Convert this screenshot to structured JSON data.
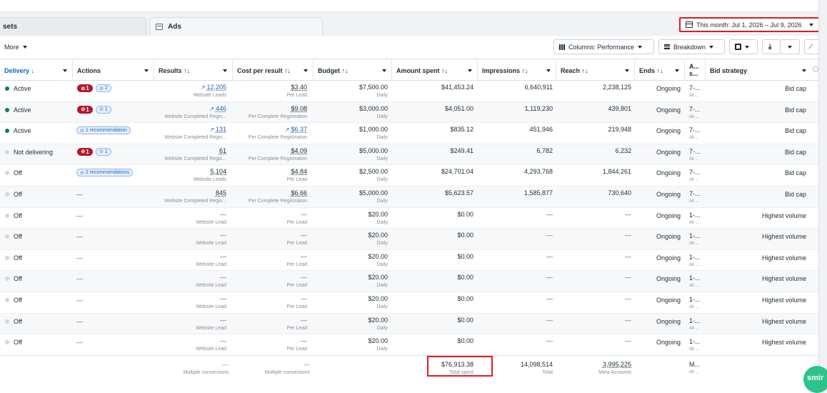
{
  "tabs": [
    {
      "label": "sets"
    },
    {
      "label": "Ads"
    }
  ],
  "date_range": "This month: Jul 1, 2026 – Jul 9, 2026",
  "toolbar": {
    "more_label": "More",
    "columns_label": "Columns: Performance",
    "breakdown_label": "Breakdown"
  },
  "headers": {
    "delivery": "Delivery ↓",
    "actions": "Actions",
    "results": "Results ↑↓",
    "cost_per_result": "Cost per result ↑↓",
    "budget": "Budget ↑↓",
    "amount_spent": "Amount spent ↑↓",
    "impressions": "Impressions ↑↓",
    "reach": "Reach ↑↓",
    "ends": "Ends ↑↓",
    "a_top": "A...",
    "a_bottom": "s...",
    "bid_strategy": "Bid strategy"
  },
  "rows": [
    {
      "status": "Active",
      "on": true,
      "issues": "1",
      "recs": "2",
      "recs_text": "",
      "results": "12,205",
      "results_sub": "Website Leads",
      "results_trend": true,
      "cpr": "$3.40",
      "cpr_sub": "Per Lead",
      "cpr_trend": false,
      "budget": "$7,500.00",
      "budget_sub": "Daily",
      "spent": "$41,453.24",
      "impressions": "6,640,911",
      "reach": "2,238,125",
      "ends": "Ongoing",
      "a1": "7-...",
      "a2": "All ...",
      "bid": "Bid cap"
    },
    {
      "status": "Active",
      "on": true,
      "issues": "1",
      "recs": "1",
      "recs_text": "",
      "results": "446",
      "results_sub": "Website Completed Regis...",
      "results_trend": true,
      "cpr": "$9.08",
      "cpr_sub": "Per Complete Registration",
      "cpr_trend": false,
      "budget": "$3,000.00",
      "budget_sub": "Daily",
      "spent": "$4,051.00",
      "impressions": "1,119,230",
      "reach": "439,801",
      "ends": "Ongoing",
      "a1": "7-...",
      "a2": "All ...",
      "bid": "Bid cap"
    },
    {
      "status": "Active",
      "on": true,
      "issues": "",
      "recs": "",
      "recs_text": "1 recommendation",
      "results": "131",
      "results_sub": "Website Completed Regis...",
      "results_trend": true,
      "cpr": "$6.37",
      "cpr_sub": "Per Complete Registration",
      "cpr_trend": true,
      "budget": "$1,000.00",
      "budget_sub": "Daily",
      "spent": "$835.12",
      "impressions": "451,946",
      "reach": "219,948",
      "ends": "Ongoing",
      "a1": "7-...",
      "a2": "All ...",
      "bid": "Bid cap"
    },
    {
      "status": "Not delivering",
      "on": false,
      "issues": "1",
      "recs": "1",
      "recs_text": "",
      "results": "61",
      "results_sub": "Website Completed Regis...",
      "results_trend": false,
      "cpr": "$4.09",
      "cpr_sub": "Per Complete Registration",
      "cpr_trend": false,
      "budget": "$5,000.00",
      "budget_sub": "Daily",
      "spent": "$249.41",
      "impressions": "6,782",
      "reach": "6,232",
      "ends": "Ongoing",
      "a1": "7-...",
      "a2": "All ...",
      "bid": "Bid cap"
    },
    {
      "status": "Off",
      "on": false,
      "issues": "",
      "recs": "",
      "recs_text": "2 recommendations",
      "results": "5,104",
      "results_sub": "Website Leads",
      "results_trend": false,
      "cpr": "$4.84",
      "cpr_sub": "Per Lead",
      "cpr_trend": false,
      "budget": "$2,500.00",
      "budget_sub": "Daily",
      "spent": "$24,701.04",
      "impressions": "4,293,768",
      "reach": "1,844,261",
      "ends": "Ongoing",
      "a1": "7-...",
      "a2": "All ...",
      "bid": "Bid cap"
    },
    {
      "status": "Off",
      "on": false,
      "issues": "",
      "recs": "",
      "recs_text": "",
      "results": "845",
      "results_sub": "Website Completed Regis...",
      "results_trend": false,
      "cpr": "$6.66",
      "cpr_sub": "Per Complete Registration",
      "cpr_trend": false,
      "budget": "$5,000.00",
      "budget_sub": "Daily",
      "spent": "$5,623.57",
      "impressions": "1,585,877",
      "reach": "730,640",
      "ends": "Ongoing",
      "a1": "7-...",
      "a2": "All ...",
      "bid": "Bid cap"
    },
    {
      "status": "Off",
      "on": false,
      "issues": "",
      "recs": "",
      "recs_text": "",
      "results": "—",
      "results_sub": "Website Lead",
      "results_trend": false,
      "cpr": "—",
      "cpr_sub": "Per Lead",
      "cpr_trend": false,
      "budget": "$20.00",
      "budget_sub": "Daily",
      "spent": "$0.00",
      "impressions": "—",
      "reach": "—",
      "ends": "Ongoing",
      "a1": "1-...",
      "a2": "All ...",
      "bid": "Highest volume"
    },
    {
      "status": "Off",
      "on": false,
      "issues": "",
      "recs": "",
      "recs_text": "",
      "results": "—",
      "results_sub": "Website Lead",
      "results_trend": false,
      "cpr": "—",
      "cpr_sub": "Per Lead",
      "cpr_trend": false,
      "budget": "$20.00",
      "budget_sub": "Daily",
      "spent": "$0.00",
      "impressions": "—",
      "reach": "—",
      "ends": "Ongoing",
      "a1": "1-...",
      "a2": "All ...",
      "bid": "Highest volume"
    },
    {
      "status": "Off",
      "on": false,
      "issues": "",
      "recs": "",
      "recs_text": "",
      "results": "—",
      "results_sub": "Website Lead",
      "results_trend": false,
      "cpr": "—",
      "cpr_sub": "Per Lead",
      "cpr_trend": false,
      "budget": "$20.00",
      "budget_sub": "Daily",
      "spent": "$0.00",
      "impressions": "—",
      "reach": "—",
      "ends": "Ongoing",
      "a1": "1-...",
      "a2": "All ...",
      "bid": "Highest volume"
    },
    {
      "status": "Off",
      "on": false,
      "issues": "",
      "recs": "",
      "recs_text": "",
      "results": "—",
      "results_sub": "Website Lead",
      "results_trend": false,
      "cpr": "—",
      "cpr_sub": "Per Lead",
      "cpr_trend": false,
      "budget": "$20.00",
      "budget_sub": "Daily",
      "spent": "$0.00",
      "impressions": "—",
      "reach": "—",
      "ends": "Ongoing",
      "a1": "1-...",
      "a2": "All ...",
      "bid": "Highest volume"
    },
    {
      "status": "Off",
      "on": false,
      "issues": "",
      "recs": "",
      "recs_text": "",
      "results": "—",
      "results_sub": "Website Lead",
      "results_trend": false,
      "cpr": "—",
      "cpr_sub": "Per Lead",
      "cpr_trend": false,
      "budget": "$20.00",
      "budget_sub": "Daily",
      "spent": "$0.00",
      "impressions": "—",
      "reach": "—",
      "ends": "Ongoing",
      "a1": "1-...",
      "a2": "All ...",
      "bid": "Highest volume"
    },
    {
      "status": "Off",
      "on": false,
      "issues": "",
      "recs": "",
      "recs_text": "",
      "results": "—",
      "results_sub": "Website Lead",
      "results_trend": false,
      "cpr": "—",
      "cpr_sub": "Per Lead",
      "cpr_trend": false,
      "budget": "$20.00",
      "budget_sub": "Daily",
      "spent": "$0.00",
      "impressions": "—",
      "reach": "—",
      "ends": "Ongoing",
      "a1": "1-...",
      "a2": "All ...",
      "bid": "Highest volume"
    },
    {
      "status": "Off",
      "on": false,
      "issues": "",
      "recs": "",
      "recs_text": "",
      "results": "—",
      "results_sub": "Website Lead",
      "results_trend": false,
      "cpr": "—",
      "cpr_sub": "Per Lead",
      "cpr_trend": false,
      "budget": "$20.00",
      "budget_sub": "Daily",
      "spent": "$0.00",
      "impressions": "—",
      "reach": "—",
      "ends": "Ongoing",
      "a1": "1-...",
      "a2": "All ...",
      "bid": "Highest volume"
    }
  ],
  "summary": {
    "results": "—",
    "results_sub": "Multiple conversions",
    "cpr": "—",
    "cpr_sub": "Multiple conversions",
    "spent": "$76,913.38",
    "spent_sub": "Total spent",
    "impressions": "14,098,514",
    "impressions_sub": "Total",
    "reach": "3,995,225",
    "reach_sub": "Meta Accounts",
    "a1": "M...",
    "a2": "All ..."
  },
  "badge": "smir",
  "colors": {
    "accent": "#0a66c2",
    "active": "#0b7d57",
    "highlight": "#e11d1d",
    "issue": "#b3162b"
  }
}
